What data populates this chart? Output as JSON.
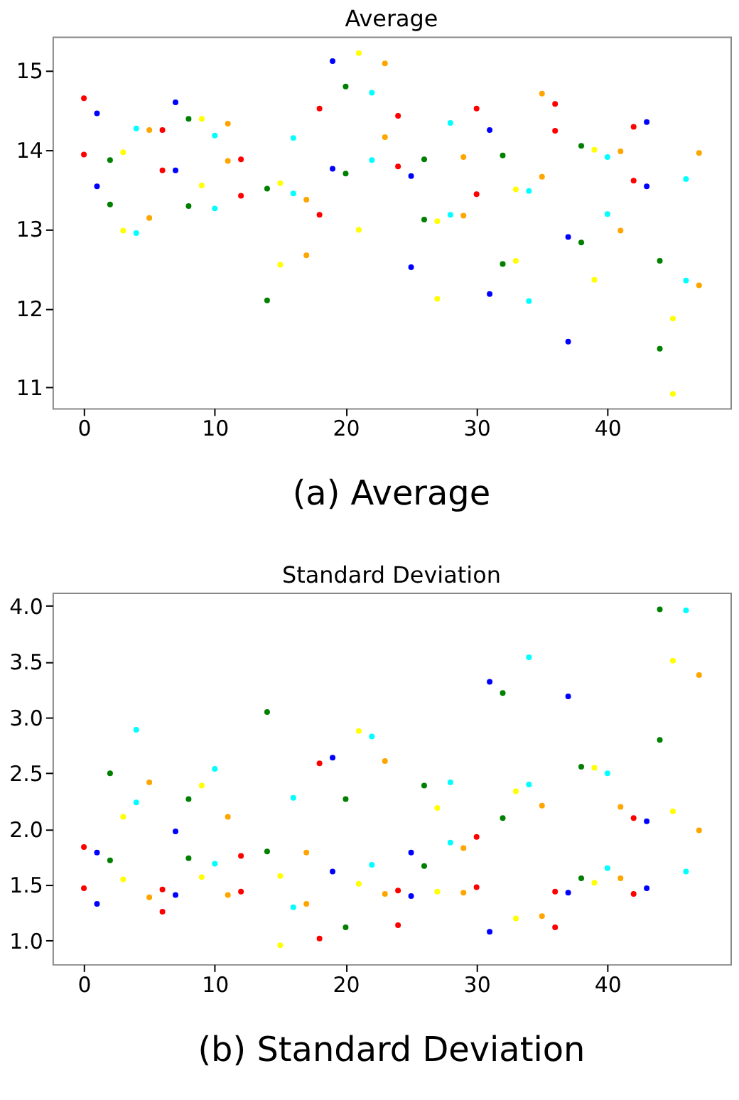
{
  "chart_data": [
    {
      "type": "scatter",
      "title": "Average",
      "marker": "circle",
      "grid": false,
      "legend": false,
      "xlim": [
        -2.4,
        49.4
      ],
      "xticks": [
        0,
        10,
        20,
        30,
        40
      ],
      "ylim": [
        10.74,
        15.43
      ],
      "yticks": [
        11,
        12,
        13,
        14,
        15
      ],
      "annotations": [
        "(a) Average"
      ],
      "series": [
        {
          "color": "#ff0000",
          "x": [
            0,
            0,
            6,
            6,
            12,
            12,
            18,
            18,
            24,
            24,
            30,
            30,
            36,
            36,
            42,
            42
          ],
          "values": [
            13.94,
            14.65,
            13.74,
            14.25,
            13.42,
            13.88,
            13.18,
            14.52,
            13.79,
            14.43,
            13.44,
            14.52,
            14.24,
            14.58,
            13.61,
            14.29
          ]
        },
        {
          "color": "#0000ff",
          "x": [
            1,
            1,
            7,
            7,
            19,
            19,
            25,
            25,
            31,
            31,
            37,
            37,
            43,
            43
          ],
          "values": [
            13.54,
            14.46,
            13.74,
            14.6,
            13.76,
            15.12,
            12.52,
            13.67,
            12.18,
            14.25,
            11.58,
            12.9,
            13.54,
            14.35
          ]
        },
        {
          "color": "#008000",
          "x": [
            2,
            2,
            8,
            8,
            14,
            14,
            20,
            20,
            26,
            26,
            32,
            32,
            38,
            38,
            44,
            44
          ],
          "values": [
            13.31,
            13.87,
            13.29,
            14.39,
            12.1,
            13.51,
            13.7,
            14.8,
            13.12,
            13.88,
            12.56,
            13.93,
            12.83,
            14.05,
            11.49,
            12.6
          ]
        },
        {
          "color": "#ffff00",
          "x": [
            3,
            3,
            9,
            9,
            15,
            15,
            21,
            21,
            27,
            27,
            33,
            33,
            39,
            39,
            45,
            45
          ],
          "values": [
            12.98,
            13.97,
            13.55,
            14.39,
            12.55,
            13.58,
            12.99,
            15.22,
            12.12,
            13.1,
            12.6,
            13.5,
            12.36,
            14.0,
            10.92,
            11.87
          ]
        },
        {
          "color": "#00ffff",
          "x": [
            4,
            4,
            10,
            10,
            16,
            16,
            22,
            22,
            28,
            28,
            34,
            34,
            40,
            40,
            46,
            46
          ],
          "values": [
            12.95,
            14.27,
            13.26,
            14.18,
            13.45,
            14.15,
            13.87,
            14.72,
            13.18,
            14.34,
            12.09,
            13.48,
            13.19,
            13.91,
            12.35,
            13.63
          ]
        },
        {
          "color": "#ffa500",
          "x": [
            5,
            5,
            11,
            11,
            17,
            17,
            23,
            23,
            29,
            29,
            35,
            35,
            41,
            41,
            47,
            47
          ],
          "values": [
            13.14,
            14.25,
            13.86,
            14.33,
            12.67,
            13.37,
            14.16,
            15.09,
            13.17,
            13.91,
            13.66,
            14.71,
            12.98,
            13.98,
            12.29,
            13.96
          ]
        }
      ]
    },
    {
      "type": "scatter",
      "title": "Standard Deviation",
      "marker": "circle",
      "grid": false,
      "legend": false,
      "xlim": [
        -2.4,
        49.4
      ],
      "xticks": [
        0,
        10,
        20,
        30,
        40
      ],
      "ylim": [
        0.79,
        4.12
      ],
      "yticks": [
        {
          "value": 1,
          "label": "1.0"
        },
        1.5,
        {
          "value": 2,
          "label": "2.0"
        },
        2.5,
        {
          "value": 3,
          "label": "3.0"
        },
        3.5,
        {
          "value": 4,
          "label": "4.0"
        }
      ],
      "annotations": [
        "(b) Standard Deviation"
      ],
      "series": [
        {
          "color": "#ff0000",
          "x": [
            0,
            0,
            6,
            6,
            12,
            12,
            18,
            18,
            24,
            24,
            30,
            30,
            36,
            36,
            42,
            42
          ],
          "values": [
            1.47,
            1.84,
            1.26,
            1.46,
            1.44,
            1.76,
            1.02,
            2.59,
            1.14,
            1.45,
            1.48,
            1.93,
            1.12,
            1.44,
            1.42,
            2.1
          ]
        },
        {
          "color": "#0000ff",
          "x": [
            1,
            1,
            7,
            7,
            19,
            19,
            25,
            25,
            31,
            31,
            37,
            37,
            43,
            43
          ],
          "values": [
            1.33,
            1.79,
            1.41,
            1.98,
            1.62,
            2.64,
            1.4,
            1.79,
            1.08,
            3.32,
            1.43,
            3.19,
            1.47,
            2.07
          ]
        },
        {
          "color": "#008000",
          "x": [
            2,
            2,
            8,
            8,
            14,
            14,
            20,
            20,
            26,
            26,
            32,
            32,
            38,
            38,
            44,
            44
          ],
          "values": [
            1.72,
            2.5,
            1.74,
            2.27,
            1.8,
            3.05,
            1.12,
            2.27,
            1.67,
            2.39,
            2.1,
            3.22,
            1.56,
            2.56,
            2.8,
            3.97
          ]
        },
        {
          "color": "#ffff00",
          "x": [
            3,
            3,
            9,
            9,
            15,
            15,
            21,
            21,
            27,
            27,
            33,
            33,
            39,
            39,
            45,
            45
          ],
          "values": [
            1.55,
            2.11,
            1.57,
            2.39,
            0.96,
            1.58,
            1.51,
            2.88,
            1.44,
            2.19,
            1.2,
            2.34,
            1.52,
            2.55,
            2.16,
            3.51
          ]
        },
        {
          "color": "#00ffff",
          "x": [
            4,
            4,
            10,
            10,
            16,
            16,
            22,
            22,
            28,
            28,
            34,
            34,
            40,
            40,
            46,
            46
          ],
          "values": [
            2.24,
            2.89,
            1.69,
            2.54,
            1.3,
            2.28,
            1.68,
            2.83,
            1.88,
            2.42,
            2.4,
            3.54,
            1.65,
            2.5,
            1.62,
            3.96
          ]
        },
        {
          "color": "#ffa500",
          "x": [
            5,
            5,
            11,
            11,
            17,
            17,
            23,
            23,
            29,
            29,
            35,
            35,
            41,
            41,
            47,
            47
          ],
          "values": [
            1.39,
            2.42,
            1.41,
            2.11,
            1.33,
            1.79,
            1.42,
            2.61,
            1.43,
            1.83,
            1.22,
            2.21,
            1.56,
            2.2,
            1.99,
            3.38
          ]
        }
      ]
    }
  ]
}
